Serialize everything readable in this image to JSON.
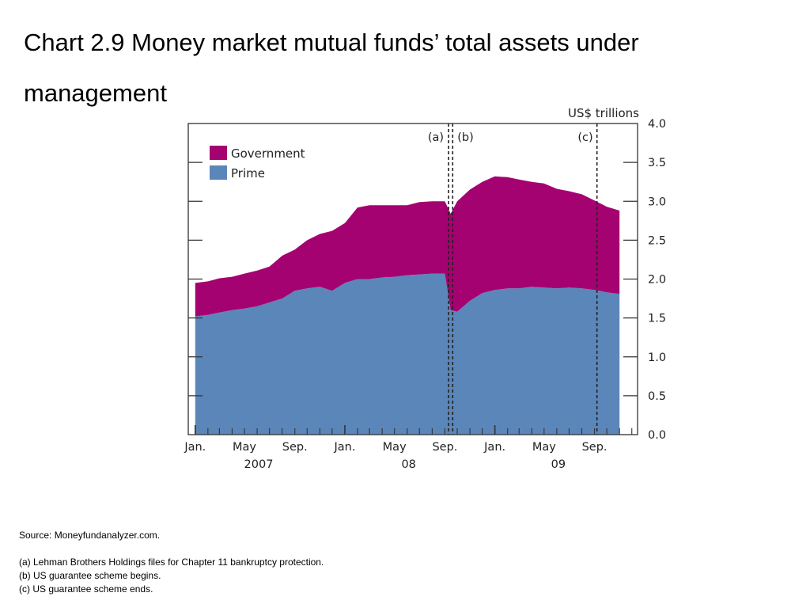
{
  "slide": {
    "title": "Chart 2.9  Money market mutual funds’ total assets under management"
  },
  "chart_data": {
    "type": "area",
    "stacked": true,
    "unit_label": "US$ trillions",
    "ylim": [
      0,
      4.0
    ],
    "y_ticks": [
      0.0,
      0.5,
      1.0,
      1.5,
      2.0,
      2.5,
      3.0,
      3.5,
      4.0
    ],
    "y_tick_labels": [
      "0.0",
      "0.5",
      "1.0",
      "1.5",
      "2.0",
      "2.5",
      "3.0",
      "3.5",
      "4.0"
    ],
    "y_axis_side": "right",
    "grid": false,
    "legend_position": "top-left",
    "x_range": [
      "2006-12-15",
      "2009-12-15"
    ],
    "x_month_labels": [
      {
        "date": "2007-01",
        "label": "Jan."
      },
      {
        "date": "2007-05",
        "label": "May"
      },
      {
        "date": "2007-09",
        "label": "Sep."
      },
      {
        "date": "2008-01",
        "label": "Jan."
      },
      {
        "date": "2008-05",
        "label": "May"
      },
      {
        "date": "2008-09",
        "label": "Sep."
      },
      {
        "date": "2009-01",
        "label": "Jan."
      },
      {
        "date": "2009-05",
        "label": "May"
      },
      {
        "date": "2009-09",
        "label": "Sep."
      }
    ],
    "x_year_labels": [
      {
        "date": "2007-05",
        "label": "2007"
      },
      {
        "date": "2008-05",
        "label": "08"
      },
      {
        "date": "2009-05",
        "label": "09"
      }
    ],
    "x_dates": [
      "2007-01-01",
      "2007-02-01",
      "2007-03-01",
      "2007-04-01",
      "2007-05-01",
      "2007-06-01",
      "2007-07-01",
      "2007-08-01",
      "2007-09-01",
      "2007-10-01",
      "2007-11-01",
      "2007-12-01",
      "2008-01-01",
      "2008-02-01",
      "2008-03-01",
      "2008-04-01",
      "2008-05-01",
      "2008-06-01",
      "2008-07-01",
      "2008-08-01",
      "2008-09-01",
      "2008-09-15",
      "2008-10-01",
      "2008-11-01",
      "2008-12-01",
      "2009-01-01",
      "2009-02-01",
      "2009-03-01",
      "2009-04-01",
      "2009-05-01",
      "2009-06-01",
      "2009-07-01",
      "2009-08-01",
      "2009-09-01",
      "2009-10-01",
      "2009-11-01"
    ],
    "series": [
      {
        "name": "Prime",
        "color": "#5b86b9",
        "values": [
          1.52,
          1.54,
          1.57,
          1.6,
          1.62,
          1.65,
          1.7,
          1.75,
          1.85,
          1.88,
          1.9,
          1.85,
          1.95,
          2.0,
          2.0,
          2.02,
          2.03,
          2.05,
          2.06,
          2.07,
          2.07,
          1.6,
          1.58,
          1.72,
          1.82,
          1.86,
          1.88,
          1.88,
          1.9,
          1.89,
          1.88,
          1.89,
          1.88,
          1.86,
          1.83,
          1.81
        ]
      },
      {
        "name": "Government",
        "color": "#a50271",
        "values": [
          0.43,
          0.43,
          0.44,
          0.43,
          0.45,
          0.46,
          0.46,
          0.55,
          0.53,
          0.62,
          0.68,
          0.77,
          0.77,
          0.92,
          0.95,
          0.93,
          0.92,
          0.9,
          0.93,
          0.93,
          0.93,
          1.24,
          1.42,
          1.43,
          1.43,
          1.46,
          1.43,
          1.4,
          1.35,
          1.34,
          1.28,
          1.24,
          1.21,
          1.15,
          1.1,
          1.07
        ]
      }
    ],
    "events": [
      {
        "label": "(a)",
        "date": "2008-09-10"
      },
      {
        "label": "(b)",
        "date": "2008-09-20"
      },
      {
        "label": "(c)",
        "date": "2009-09-07"
      }
    ]
  },
  "notes": {
    "source": "Source:  Moneyfundanalyzer.com.",
    "items": [
      "(a)  Lehman Brothers Holdings files for Chapter 11 bankruptcy protection.",
      "(b)  US guarantee scheme begins.",
      "(c)  US guarantee scheme ends."
    ]
  }
}
